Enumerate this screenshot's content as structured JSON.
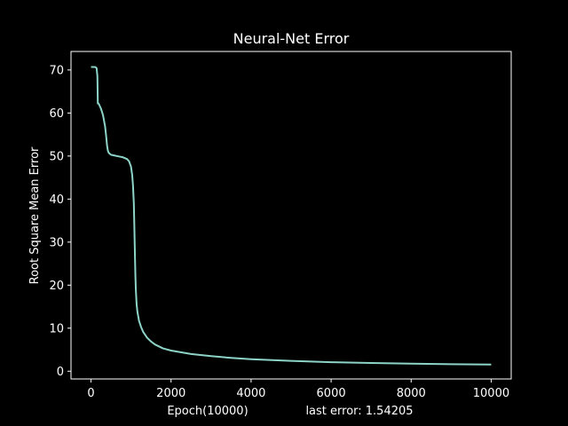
{
  "colors": {
    "background": "#000000",
    "axes": "#ffffff",
    "text": "#ffffff",
    "line": "#8dd3c7"
  },
  "chart_data": {
    "type": "line",
    "title": "Neural-Net Error",
    "xlabel": "Epoch(10000)",
    "ylabel": "Root Square Mean Error",
    "annotation": "last error: 1.54205",
    "xlim": [
      -500,
      10500
    ],
    "ylim": [
      -1.8,
      74.3
    ],
    "xticks": [
      0,
      2000,
      4000,
      6000,
      8000,
      10000
    ],
    "yticks": [
      0,
      10,
      20,
      30,
      40,
      50,
      60,
      70
    ],
    "grid": false,
    "legend": "none",
    "series": [
      {
        "values_x": [
          0,
          50,
          100,
          120,
          140,
          160,
          170,
          180,
          200,
          250,
          300,
          350,
          380,
          400,
          420,
          440,
          460,
          500,
          550,
          600,
          700,
          800,
          900,
          950,
          1000,
          1030,
          1050,
          1070,
          1080,
          1090,
          1100,
          1110,
          1120,
          1140,
          1160,
          1200,
          1250,
          1300,
          1400,
          1500,
          1600,
          1800,
          2000,
          2500,
          3000,
          3500,
          4000,
          5000,
          6000,
          7000,
          8000,
          9000,
          10000
        ],
        "values_y": [
          70.7,
          70.7,
          70.7,
          70.6,
          70.4,
          68.5,
          62.2,
          62.3,
          62.0,
          61.0,
          59.5,
          57.0,
          54.5,
          52.5,
          51.3,
          50.8,
          50.6,
          50.3,
          50.2,
          50.1,
          49.9,
          49.7,
          49.3,
          48.8,
          47.5,
          45.5,
          43.0,
          39.0,
          35.0,
          30.5,
          26.0,
          22.0,
          19.0,
          15.5,
          13.8,
          11.7,
          10.3,
          9.2,
          7.8,
          6.9,
          6.2,
          5.3,
          4.8,
          4.0,
          3.5,
          3.1,
          2.8,
          2.4,
          2.1,
          1.9,
          1.75,
          1.62,
          1.54
        ]
      }
    ]
  }
}
